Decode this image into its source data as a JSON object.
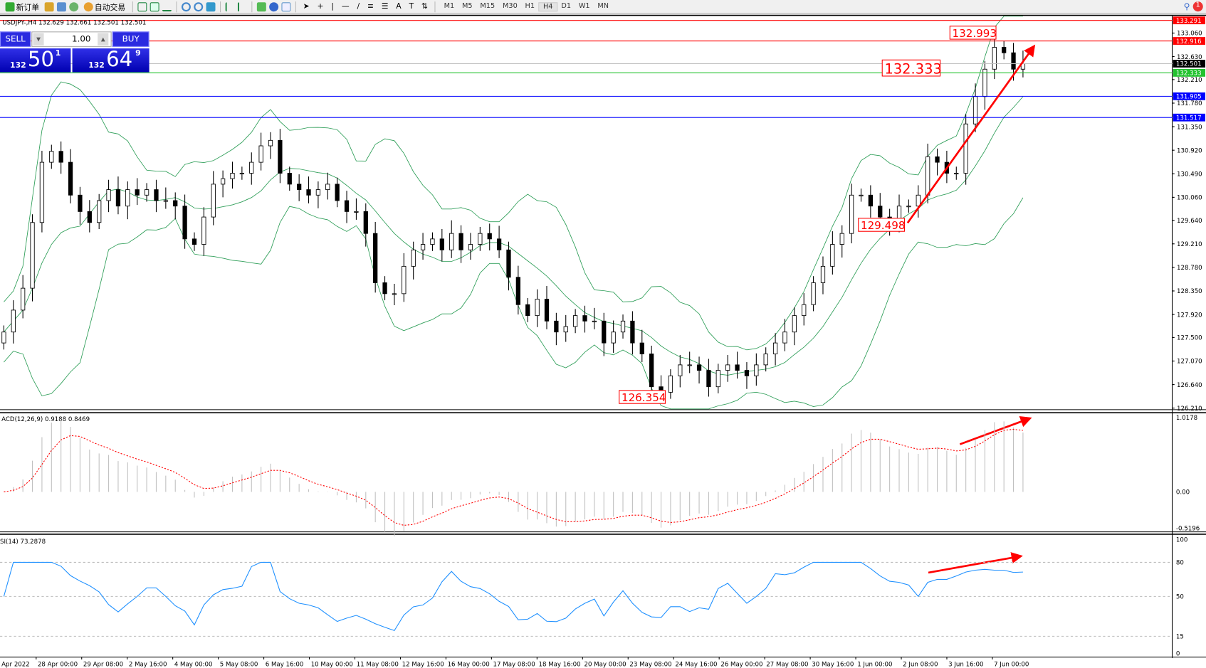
{
  "toolbar": {
    "new_order": "新订单",
    "auto_trading": "自动交易",
    "timeframes": [
      "M1",
      "M5",
      "M15",
      "M30",
      "H1",
      "H4",
      "D1",
      "W1",
      "MN"
    ],
    "active_timeframe": "H4",
    "notification_count": "1",
    "icons": [
      "new-order-icon",
      "market-watch-icon",
      "chart-window-icon",
      "signals-icon",
      "auto-trading-icon",
      "bar-chart-icon",
      "candlestick-icon",
      "line-chart-icon",
      "zoom-in-icon",
      "zoom-out-icon",
      "tile-windows-icon",
      "chart-shift-icon",
      "autoscroll-icon",
      "add-indicator-icon",
      "period-icon",
      "template-icon",
      "cursor-icon",
      "crosshair-icon",
      "vertical-line-icon",
      "horizontal-line-icon",
      "trendline-icon",
      "fibo-icon",
      "fibo-fan-icon",
      "text-icon",
      "text-label-icon",
      "arrows-icon"
    ]
  },
  "chart": {
    "symbol_info": "USDJPY-,H4  132.629 132.661 132.501 132.501",
    "sell_label": "SELL",
    "buy_label": "BUY",
    "lots": "1.00",
    "sell_price": {
      "big": "132",
      "main": "50",
      "sup": "1"
    },
    "buy_price": {
      "big": "132",
      "main": "64",
      "sup": "9"
    },
    "colors": {
      "bull": "#ffffff",
      "bear": "#000000",
      "bands": "#2e9e58",
      "red": "#ff0000",
      "blue": "#0000ff",
      "green": "#22c22e",
      "rsi": "#1e90ff",
      "macd_hist": "#c0c0c0",
      "macd_signal": "#ff0000"
    }
  },
  "chart_data": {
    "type": "candlestick",
    "y_ticks": [
      "133.060",
      "132.630",
      "132.210",
      "131.780",
      "131.350",
      "130.920",
      "130.490",
      "130.060",
      "129.640",
      "129.210",
      "128.780",
      "128.350",
      "127.920",
      "127.500",
      "127.070",
      "126.640",
      "126.210"
    ],
    "ylim": [
      126.21,
      133.06
    ],
    "closes": [
      127.6,
      128.0,
      128.4,
      129.6,
      130.7,
      130.9,
      130.7,
      130.1,
      129.8,
      129.6,
      130.0,
      130.2,
      129.9,
      130.2,
      130.1,
      130.2,
      130.0,
      130.0,
      129.9,
      129.3,
      129.2,
      129.7,
      130.3,
      130.4,
      130.5,
      130.5,
      130.7,
      131.0,
      131.1,
      130.5,
      130.3,
      130.2,
      130.1,
      130.2,
      130.3,
      130.0,
      129.8,
      129.8,
      129.4,
      128.5,
      128.3,
      128.3,
      128.8,
      129.1,
      129.2,
      129.3,
      129.1,
      129.4,
      129.1,
      129.2,
      129.4,
      129.3,
      129.1,
      128.6,
      128.1,
      127.9,
      128.2,
      127.8,
      127.6,
      127.7,
      127.9,
      127.8,
      127.8,
      127.4,
      127.6,
      127.8,
      127.4,
      127.2,
      126.6,
      126.5,
      126.8,
      127.0,
      127.0,
      126.9,
      126.6,
      126.9,
      127.0,
      126.9,
      126.8,
      127.0,
      127.2,
      127.4,
      127.6,
      127.9,
      128.1,
      128.5,
      128.8,
      129.2,
      129.4,
      130.1,
      130.1,
      129.9,
      129.7,
      129.6,
      129.9,
      129.9,
      130.1,
      130.8,
      130.7,
      130.5,
      130.5,
      131.4,
      131.9,
      132.4,
      132.8,
      132.7,
      132.4,
      132.5
    ],
    "time_labels": [
      "Apr 2022",
      "28 Apr 00:00",
      "29 Apr 08:00",
      "2 May 16:00",
      "4 May 00:00",
      "5 May 08:00",
      "6 May 16:00",
      "10 May 00:00",
      "11 May 08:00",
      "12 May 16:00",
      "16 May 00:00",
      "17 May 08:00",
      "18 May 16:00",
      "20 May 00:00",
      "23 May 08:00",
      "24 May 16:00",
      "26 May 00:00",
      "27 May 08:00",
      "30 May 16:00",
      "1 Jun 00:00",
      "2 Jun 08:00",
      "3 Jun 16:00",
      "7 Jun 00:00"
    ],
    "hlines": [
      {
        "price": 133.291,
        "label": "133.291",
        "color": "#ff0000"
      },
      {
        "price": 132.916,
        "label": "132.916",
        "color": "#ff0000"
      },
      {
        "price": 132.501,
        "label": "132.501",
        "color": "#000000"
      },
      {
        "price": 132.333,
        "label": "132.333",
        "color": "#22c22e"
      },
      {
        "price": 131.905,
        "label": "131.905",
        "color": "#0000ff"
      },
      {
        "price": 131.517,
        "label": "131.517",
        "color": "#0000ff"
      }
    ],
    "price_labels": [
      "132.993",
      "132.333",
      "129.498",
      "126.354"
    ],
    "macd": {
      "title": "ACD(12,26,9) 0.9188 0.8469",
      "ticks": [
        "1.0178",
        "0.00",
        "-0.5196"
      ]
    },
    "rsi": {
      "title": "SI(14) 73.2878",
      "ticks": [
        "100",
        "80",
        "50",
        "15",
        "0"
      ]
    }
  }
}
